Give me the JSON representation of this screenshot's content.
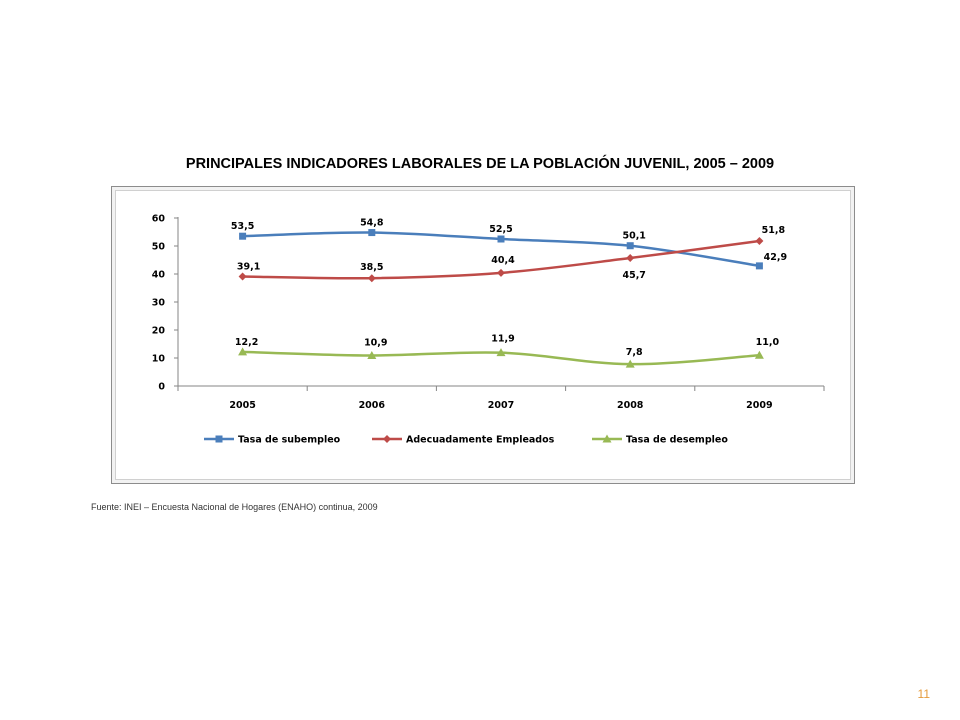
{
  "title": "PRINCIPALES INDICADORES LABORALES DE LA POBLACIÓN JUVENIL, 2005 – 2009",
  "source": "Fuente: INEI – Encuesta Nacional de Hogares  (ENAHO) continua, 2009",
  "page_number": "11",
  "chart_data": {
    "type": "line",
    "title": "PRINCIPALES INDICADORES LABORALES DE LA POBLACIÓN JUVENIL, 2005 – 2009",
    "xlabel": "",
    "ylabel": "",
    "categories": [
      "2005",
      "2006",
      "2007",
      "2008",
      "2009"
    ],
    "ylim": [
      0,
      60
    ],
    "yticks": [
      "0",
      "10",
      "20",
      "30",
      "40",
      "50",
      "60"
    ],
    "grid": false,
    "legend_position": "bottom",
    "series": [
      {
        "name": "Tasa de subempleo",
        "color": "#4a7ebb",
        "marker": "square",
        "values": [
          53.5,
          54.8,
          52.5,
          50.1,
          42.9
        ],
        "labels": [
          "53,5",
          "54,8",
          "52,5",
          "50,1",
          "42,9"
        ]
      },
      {
        "name": "Adecuadamente Empleados",
        "color": "#be4b48",
        "marker": "diamond",
        "values": [
          39.1,
          38.5,
          40.4,
          45.7,
          51.8
        ],
        "labels": [
          "39,1",
          "38,5",
          "40,4",
          "45,7",
          "51,8"
        ]
      },
      {
        "name": "Tasa de desempleo",
        "color": "#98b954",
        "marker": "triangle",
        "values": [
          12.2,
          10.9,
          11.9,
          7.8,
          11.0
        ],
        "labels": [
          "12,2",
          "10,9",
          "11,9",
          "7,8",
          "11,0"
        ]
      }
    ]
  }
}
